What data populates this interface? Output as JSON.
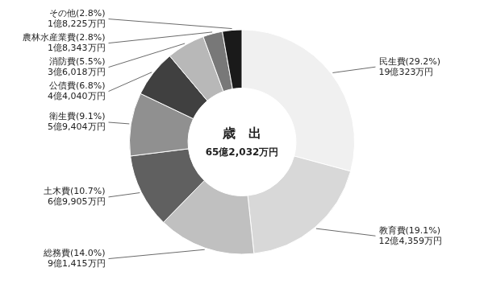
{
  "chart_data": {
    "type": "doughnut",
    "title": "歳　出",
    "subtitle": "65億2,032万円",
    "categories": [
      [
        "民生費(29.2%)",
        "19億323万円"
      ],
      [
        "教育費(19.1%)",
        "12億4,359万円"
      ],
      [
        "総務費(14.0%)",
        "9億1,415万円"
      ],
      [
        "土木費(10.7%)",
        "6億9,905万円"
      ],
      [
        "衛生費(9.1%)",
        "5億9,404万円"
      ],
      [
        "公債費(6.8%)",
        "4億4,040万円"
      ],
      [
        "消防費(5.5%)",
        "3億6,018万円"
      ],
      [
        "農林水産業費(2.8%)",
        "1億8,343万円"
      ],
      [
        "その他(2.8%)",
        "1億8,225万円"
      ]
    ],
    "values": [
      29.2,
      19.1,
      14.0,
      10.7,
      9.1,
      6.8,
      5.5,
      2.8,
      2.8
    ],
    "colors": [
      "#f0f0f0",
      "#d8d8d8",
      "#c0c0c0",
      "#606060",
      "#909090",
      "#404040",
      "#b8b8b8",
      "#787878",
      "#1a1a1a"
    ]
  }
}
